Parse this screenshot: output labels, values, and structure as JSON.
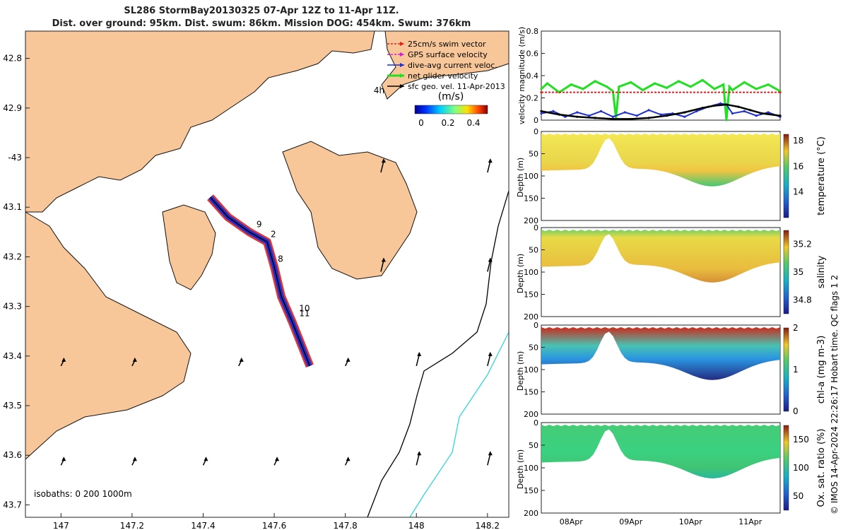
{
  "title_line1": "SL286 StormBay20130325 07-Apr 12Z to 11-Apr 11Z.",
  "title_line2": "Dist. over ground: 95km. Dist. swum: 86km. Mission DOG: 454km. Swum: 376km",
  "map": {
    "lon_ticks": [
      "147",
      "147.2",
      "147.4",
      "147.6",
      "147.8",
      "148",
      "148.2"
    ],
    "lat_ticks": [
      "42.8",
      "42.9",
      "-43",
      "43.1",
      "43.2",
      "43.3",
      "43.4",
      "43.5",
      "43.6",
      "43.7"
    ],
    "isobaths_label": "isobaths: 0   200  1000m",
    "legend": [
      {
        "label": "25cm/s swim vector",
        "color": "#e02020"
      },
      {
        "label": "GPS surface velocity",
        "color": "#d020d0"
      },
      {
        "label": "dive-avg current veloc.",
        "color": "#1f2fd0"
      },
      {
        "label": "net glider velocity",
        "color": "#20e020"
      },
      {
        "label": "sfc geo. vel. 11-Apr-2013",
        "color": "#000000"
      }
    ],
    "colorbar_title": "(m/s)",
    "colorbar_ticks": [
      "0",
      "0.2",
      "0.4"
    ],
    "day_labels": [
      {
        "label": "9",
        "lon": 147.55,
        "lat": 43.14
      },
      {
        "label": "2",
        "lon": 147.59,
        "lat": 43.16
      },
      {
        "label": "8",
        "lon": 147.61,
        "lat": 43.21
      },
      {
        "label": "10",
        "lon": 147.67,
        "lat": 43.31
      },
      {
        "label": "11",
        "lon": 147.67,
        "lat": 43.32
      },
      {
        "label": "4h",
        "lon": 147.88,
        "lat": 42.87
      }
    ],
    "track": [
      [
        147.42,
        43.08
      ],
      [
        147.47,
        43.12
      ],
      [
        147.53,
        43.15
      ],
      [
        147.58,
        43.17
      ],
      [
        147.6,
        43.22
      ],
      [
        147.62,
        43.28
      ],
      [
        147.65,
        43.33
      ],
      [
        147.7,
        43.42
      ]
    ]
  },
  "chart_data": [
    {
      "type": "line",
      "ylabel": "velocity magnitude (m/s)",
      "ylim": [
        0,
        0.8
      ],
      "yticks": [
        "0",
        "0.2",
        "0.4",
        "0.6",
        "0.8"
      ],
      "xlim_days": [
        7.5,
        11.5
      ],
      "series": [
        {
          "name": "net glider velocity",
          "color": "#20e020",
          "x": [
            7.5,
            7.6,
            7.8,
            8.0,
            8.2,
            8.4,
            8.6,
            8.7,
            8.75,
            8.8,
            9.0,
            9.2,
            9.4,
            9.6,
            9.8,
            10.0,
            10.2,
            10.4,
            10.55,
            10.6,
            10.65,
            10.7,
            10.9,
            11.1,
            11.3,
            11.5
          ],
          "values": [
            0.28,
            0.33,
            0.25,
            0.32,
            0.28,
            0.35,
            0.3,
            0.26,
            0.02,
            0.3,
            0.34,
            0.27,
            0.33,
            0.29,
            0.35,
            0.3,
            0.36,
            0.28,
            0.32,
            0.0,
            0.3,
            0.27,
            0.34,
            0.28,
            0.32,
            0.26
          ]
        },
        {
          "name": "25cm/s swim vector",
          "color": "#e02020",
          "x": [
            7.5,
            11.5
          ],
          "values": [
            0.25,
            0.25
          ]
        },
        {
          "name": "dive-avg current veloc.",
          "color": "#1f2fd0",
          "x": [
            7.5,
            7.7,
            7.9,
            8.1,
            8.3,
            8.5,
            8.7,
            8.9,
            9.1,
            9.3,
            9.5,
            9.7,
            9.9,
            10.1,
            10.3,
            10.5,
            10.6,
            10.7,
            10.9,
            11.1,
            11.3,
            11.5
          ],
          "values": [
            0.06,
            0.08,
            0.03,
            0.07,
            0.04,
            0.08,
            0.03,
            0.07,
            0.04,
            0.09,
            0.05,
            0.06,
            0.03,
            0.08,
            0.12,
            0.15,
            0.14,
            0.06,
            0.08,
            0.04,
            0.07,
            0.03
          ]
        },
        {
          "name": "sfc geo. vel.",
          "color": "#000000",
          "x": [
            7.5,
            7.8,
            8.1,
            8.4,
            8.7,
            9.0,
            9.3,
            9.6,
            9.9,
            10.2,
            10.4,
            10.6,
            10.8,
            11.0,
            11.2,
            11.5
          ],
          "values": [
            0.08,
            0.05,
            0.03,
            0.02,
            0.01,
            0.01,
            0.02,
            0.04,
            0.07,
            0.11,
            0.13,
            0.14,
            0.12,
            0.09,
            0.06,
            0.04
          ]
        }
      ]
    },
    {
      "type": "heatmap",
      "ylabel": "Depth (m)",
      "ylim": [
        200,
        0
      ],
      "yticks": [
        "0",
        "50",
        "100",
        "150",
        "200"
      ],
      "cbar_label": "temperature (°C)",
      "cbar_ticks": [
        "18",
        "16",
        "14"
      ],
      "cbar_range": [
        12,
        18.5
      ],
      "palette": "parula"
    },
    {
      "type": "heatmap",
      "ylabel": "Depth (m)",
      "ylim": [
        200,
        0
      ],
      "yticks": [
        "0",
        "50",
        "100",
        "150",
        "200"
      ],
      "cbar_label": "salinity",
      "cbar_ticks": [
        "35.2",
        "35",
        "34.8"
      ],
      "cbar_range": [
        34.7,
        35.3
      ],
      "palette": "parula"
    },
    {
      "type": "heatmap",
      "ylabel": "Depth (m)",
      "ylim": [
        200,
        0
      ],
      "yticks": [
        "0",
        "50",
        "100",
        "150",
        "200"
      ],
      "cbar_label": "chl-a (mg m-3)",
      "cbar_ticks": [
        "2",
        "1",
        "0"
      ],
      "cbar_range": [
        0,
        2
      ],
      "palette": "parula"
    },
    {
      "type": "heatmap",
      "ylabel": "Depth (m)",
      "ylim": [
        200,
        0
      ],
      "yticks": [
        "0",
        "50",
        "100",
        "150",
        "200"
      ],
      "cbar_label": "Ox. sat. ratio (%)",
      "cbar_ticks": [
        "150",
        "100",
        "50"
      ],
      "cbar_range": [
        25,
        175
      ],
      "palette": "parula"
    }
  ],
  "x_date_ticks": [
    "08Apr",
    "09Apr",
    "10Apr",
    "11Apr"
  ],
  "side_caption": "© IMOS 14-Apr-2024 22:26:17 Hobart time. QC flags 1  2"
}
